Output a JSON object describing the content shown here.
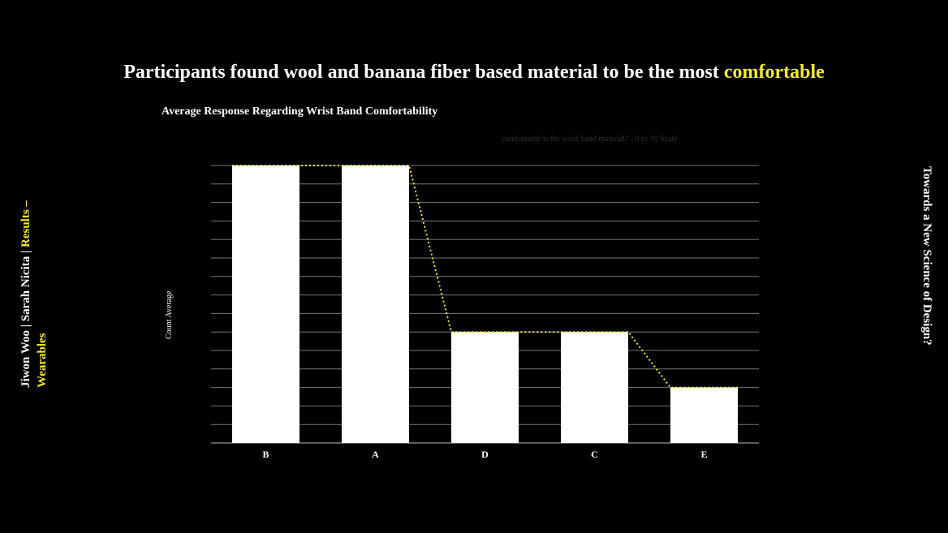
{
  "headline": {
    "prefix": "Participants found wool and banana fiber based material to be the most ",
    "highlight": "comfortable"
  },
  "side_left": {
    "authors": "Jiwon Woo | Sarah Nicita | ",
    "section": "Results – Wearables"
  },
  "side_right": {
    "text": "Towards a New Science of Design?"
  },
  "colors": {
    "accent": "#f5ea2a",
    "bars": "#ffffff",
    "background": "#000000",
    "grid": "#777777"
  },
  "chart_data": {
    "type": "bar",
    "title": "Average Response Regarding Wrist Band Comfortability",
    "subtitle": "comfortable is the wrist band material? - 0 to 10 Scale",
    "ylabel": "Count Average",
    "xlabel": "",
    "categories": [
      "B",
      "A",
      "D",
      "C",
      "E"
    ],
    "values": [
      7.5,
      7.5,
      3.0,
      3.0,
      1.5
    ],
    "ylim": [
      0,
      7.5
    ],
    "grid": true,
    "trend_line": {
      "style": "dotted",
      "color": "#f5ea2a"
    }
  }
}
